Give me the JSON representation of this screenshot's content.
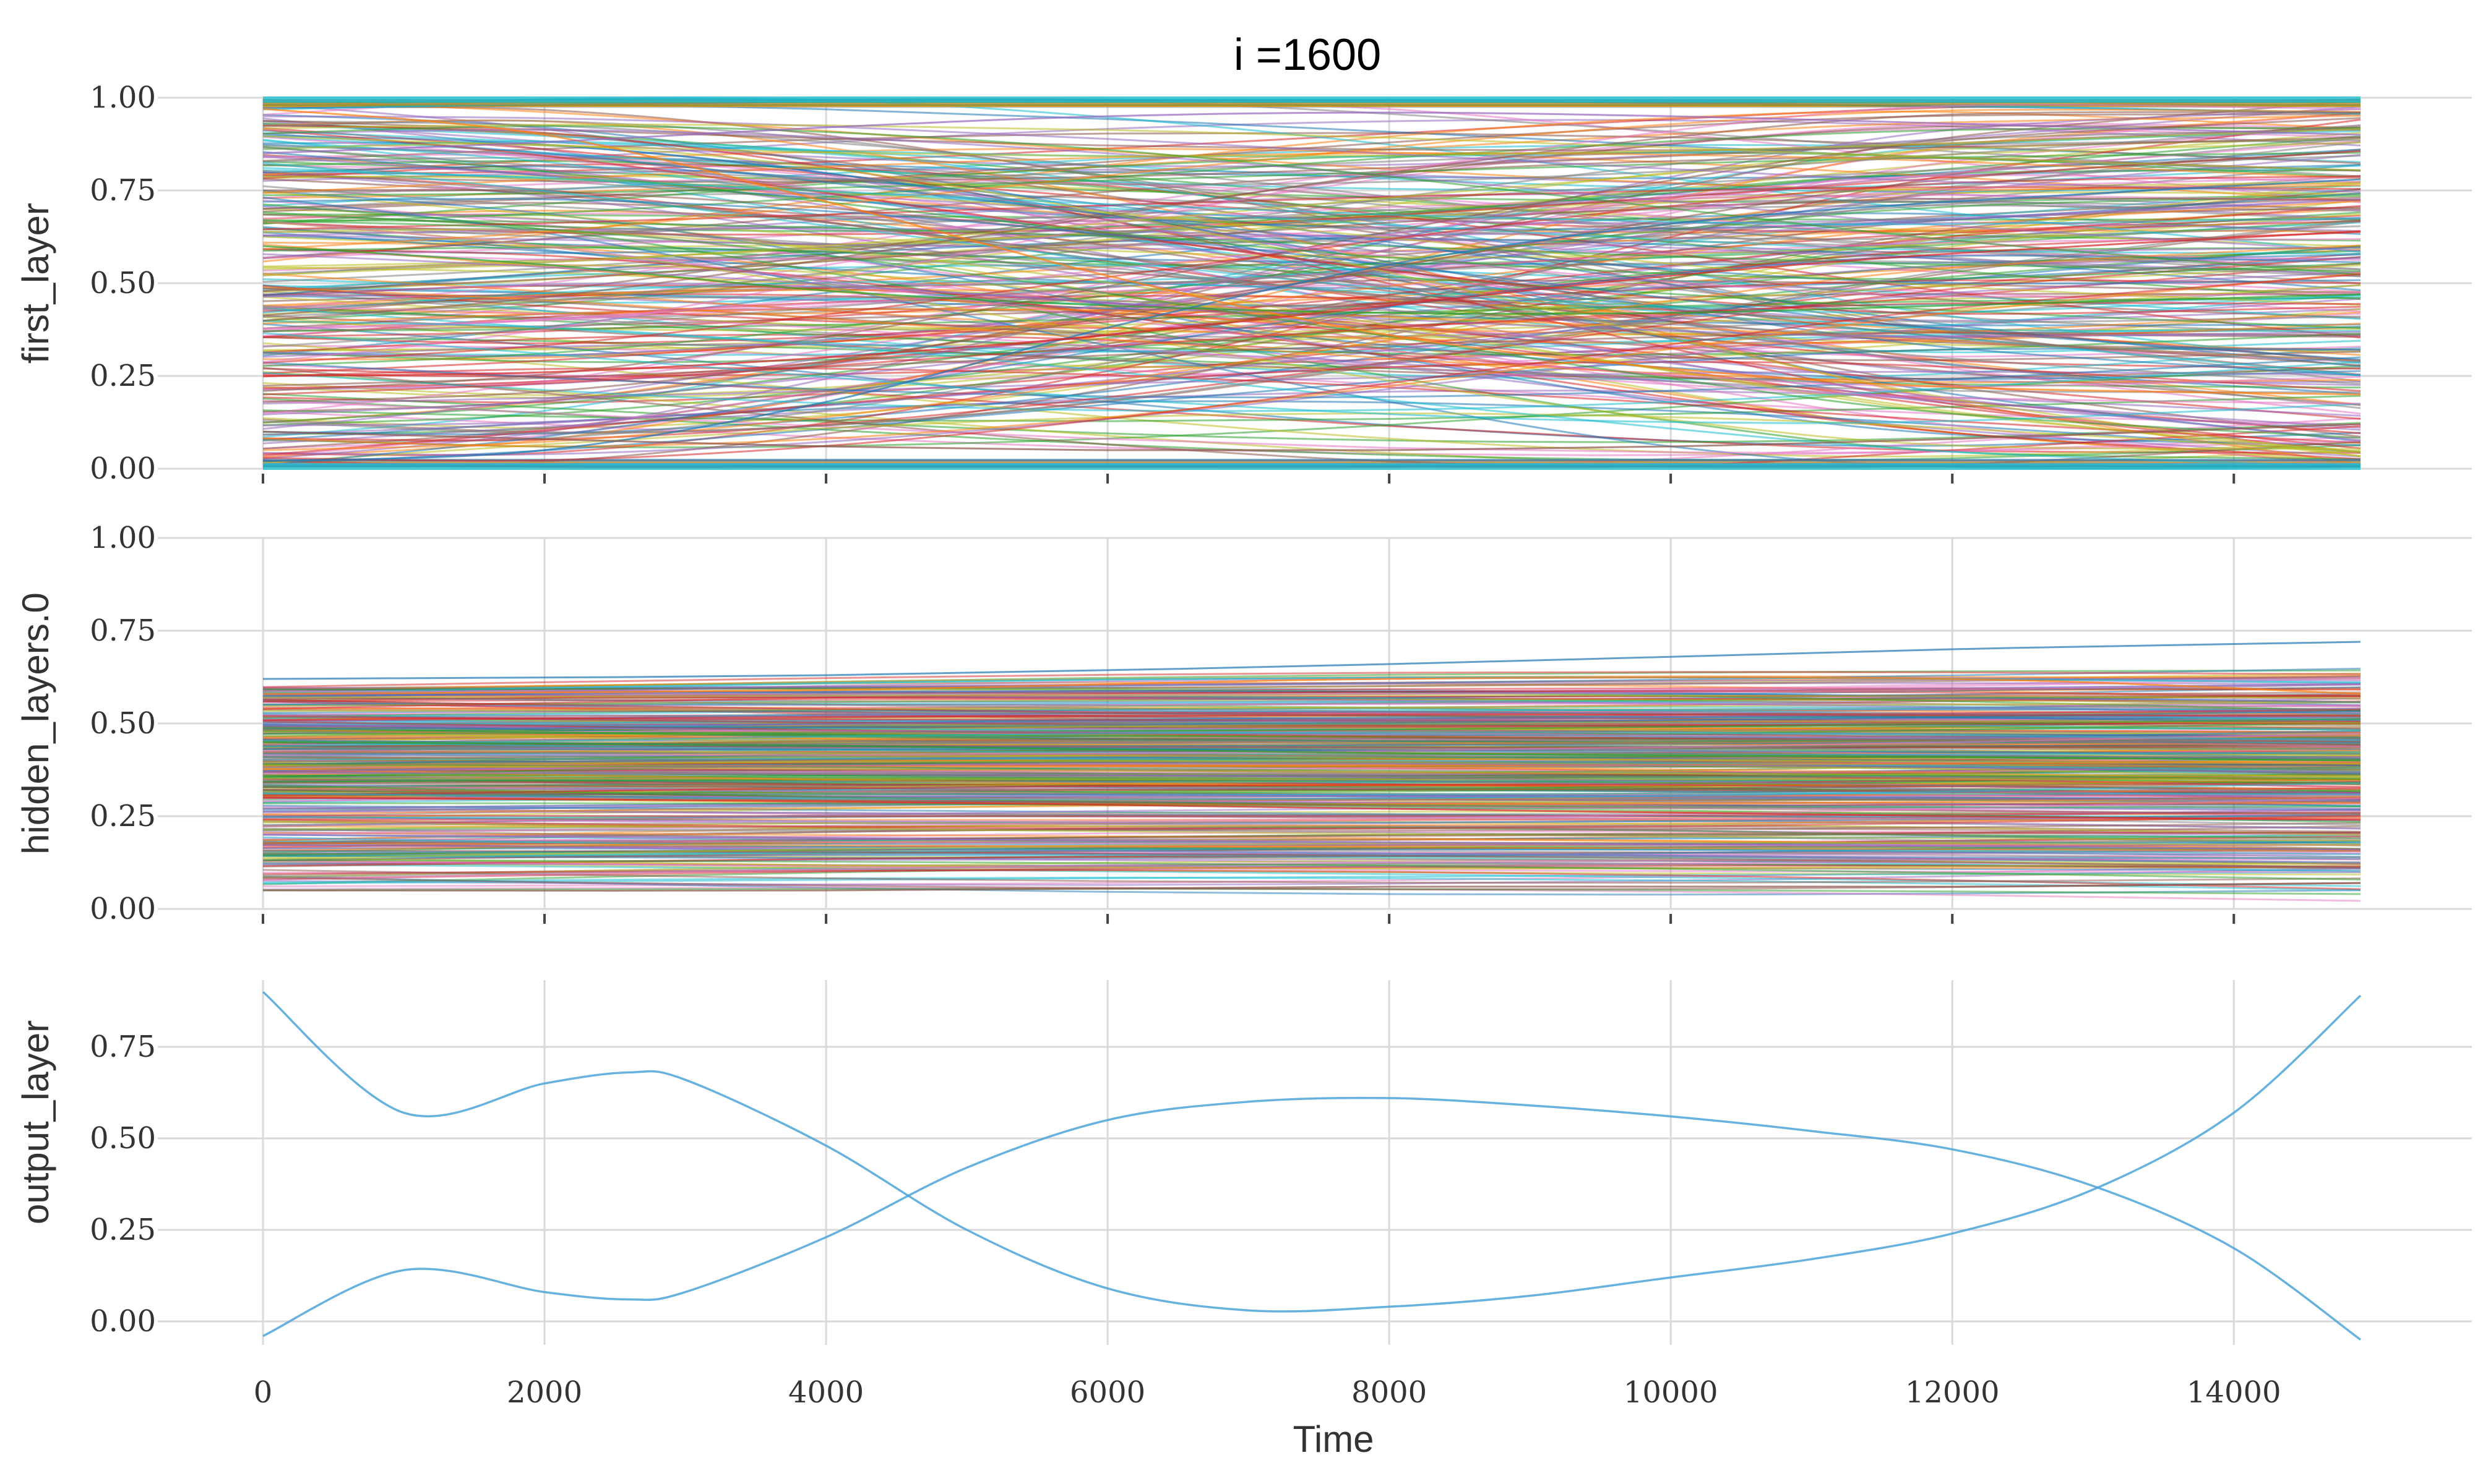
{
  "chart_data": [
    {
      "type": "line",
      "title": "i =1600",
      "ylabel": "first_layer",
      "xlabel": "",
      "xlim": [
        0,
        14900
      ],
      "ylim": [
        0,
        1
      ],
      "x_ticks": [
        0,
        2000,
        4000,
        6000,
        8000,
        10000,
        12000,
        14000
      ],
      "x_tick_labels_shown": false,
      "y_ticks": [
        "0.00",
        "0.25",
        "0.50",
        "0.75",
        "1.00"
      ],
      "grid": true,
      "series_count_estimate": 300,
      "description": "Hundreds of smooth activation curves per neuron spanning 0 to 1, many crossing; dense bands saturated near 0 and 1",
      "series": [
        {
          "x": [
            0,
            2000,
            4000,
            6000,
            8000,
            10000,
            12000,
            14900
          ],
          "values": [
            0.02,
            0.05,
            0.18,
            0.38,
            0.55,
            0.66,
            0.72,
            0.78
          ]
        },
        {
          "x": [
            0,
            2000,
            4000,
            6000,
            8000,
            10000,
            12000,
            14900
          ],
          "values": [
            0.97,
            0.9,
            0.72,
            0.52,
            0.36,
            0.27,
            0.22,
            0.2
          ]
        },
        {
          "x": [
            0,
            2000,
            4000,
            6000,
            8000,
            10000,
            12000,
            14900
          ],
          "values": [
            0.6,
            0.55,
            0.48,
            0.44,
            0.42,
            0.42,
            0.44,
            0.47
          ]
        },
        {
          "x": [
            0,
            2000,
            4000,
            6000,
            8000,
            10000,
            12000,
            14900
          ],
          "values": [
            0.25,
            0.26,
            0.3,
            0.36,
            0.44,
            0.52,
            0.58,
            0.64
          ]
        },
        {
          "x": [
            0,
            2000,
            4000,
            6000,
            8000,
            10000,
            12000,
            14900
          ],
          "values": [
            0.85,
            0.88,
            0.92,
            0.95,
            0.96,
            0.95,
            0.93,
            0.9
          ]
        },
        {
          "x": [
            0,
            2000,
            4000,
            6000,
            8000,
            10000,
            12000,
            14900
          ],
          "values": [
            0.1,
            0.08,
            0.06,
            0.05,
            0.05,
            0.06,
            0.08,
            0.12
          ]
        }
      ]
    },
    {
      "type": "line",
      "title": "",
      "ylabel": "hidden_layers.0",
      "xlabel": "",
      "xlim": [
        0,
        14900
      ],
      "ylim": [
        0,
        1
      ],
      "x_ticks": [
        0,
        2000,
        4000,
        6000,
        8000,
        10000,
        12000,
        14000
      ],
      "x_tick_labels_shown": false,
      "y_ticks": [
        "0.00",
        "0.25",
        "0.50",
        "0.75",
        "1.00"
      ],
      "grid": true,
      "series_count_estimate": 400,
      "description": "Dense bundle of nearly flat activation curves, concentrated between about 0.15 and 0.6, a few reaching 0.72 near the end",
      "series": [
        {
          "x": [
            0,
            4000,
            8000,
            12000,
            14900
          ],
          "values": [
            0.62,
            0.63,
            0.66,
            0.7,
            0.72
          ]
        },
        {
          "x": [
            0,
            4000,
            8000,
            12000,
            14900
          ],
          "values": [
            0.58,
            0.59,
            0.62,
            0.62,
            0.58
          ]
        },
        {
          "x": [
            0,
            4000,
            8000,
            12000,
            14900
          ],
          "values": [
            0.45,
            0.44,
            0.42,
            0.41,
            0.4
          ]
        },
        {
          "x": [
            0,
            4000,
            8000,
            12000,
            14900
          ],
          "values": [
            0.3,
            0.29,
            0.27,
            0.25,
            0.24
          ]
        },
        {
          "x": [
            0,
            4000,
            8000,
            12000,
            14900
          ],
          "values": [
            0.2,
            0.19,
            0.18,
            0.17,
            0.16
          ]
        },
        {
          "x": [
            0,
            4000,
            8000,
            12000,
            14900
          ],
          "values": [
            0.05,
            0.05,
            0.06,
            0.06,
            0.07
          ]
        }
      ]
    },
    {
      "type": "line",
      "title": "",
      "ylabel": "output_layer",
      "xlabel": "Time",
      "xlim": [
        0,
        14900
      ],
      "ylim": [
        -0.08,
        0.93
      ],
      "x_ticks": [
        0,
        2000,
        4000,
        6000,
        8000,
        10000,
        12000,
        14000
      ],
      "x_tick_labels": [
        "0",
        "2000",
        "4000",
        "6000",
        "8000",
        "10000",
        "12000",
        "14000"
      ],
      "x_tick_labels_shown": true,
      "y_ticks": [
        "0.00",
        "0.25",
        "0.50",
        "0.75"
      ],
      "grid": true,
      "series": [
        {
          "color": "#4ba3d8",
          "x": [
            0,
            1000,
            2000,
            2600,
            3000,
            4000,
            5000,
            6000,
            7000,
            8000,
            9000,
            10000,
            11000,
            12000,
            13000,
            14000,
            14900
          ],
          "values": [
            0.9,
            0.57,
            0.65,
            0.68,
            0.66,
            0.48,
            0.25,
            0.09,
            0.03,
            0.04,
            0.07,
            0.12,
            0.17,
            0.24,
            0.36,
            0.57,
            0.89
          ]
        },
        {
          "color": "#4ba3d8",
          "x": [
            0,
            1000,
            2000,
            2600,
            3000,
            4000,
            5000,
            6000,
            7000,
            8000,
            9000,
            10000,
            11000,
            12000,
            13000,
            14000,
            14900
          ],
          "values": [
            -0.04,
            0.14,
            0.08,
            0.06,
            0.08,
            0.23,
            0.42,
            0.55,
            0.6,
            0.61,
            0.59,
            0.56,
            0.52,
            0.47,
            0.37,
            0.2,
            -0.05
          ]
        }
      ]
    }
  ]
}
